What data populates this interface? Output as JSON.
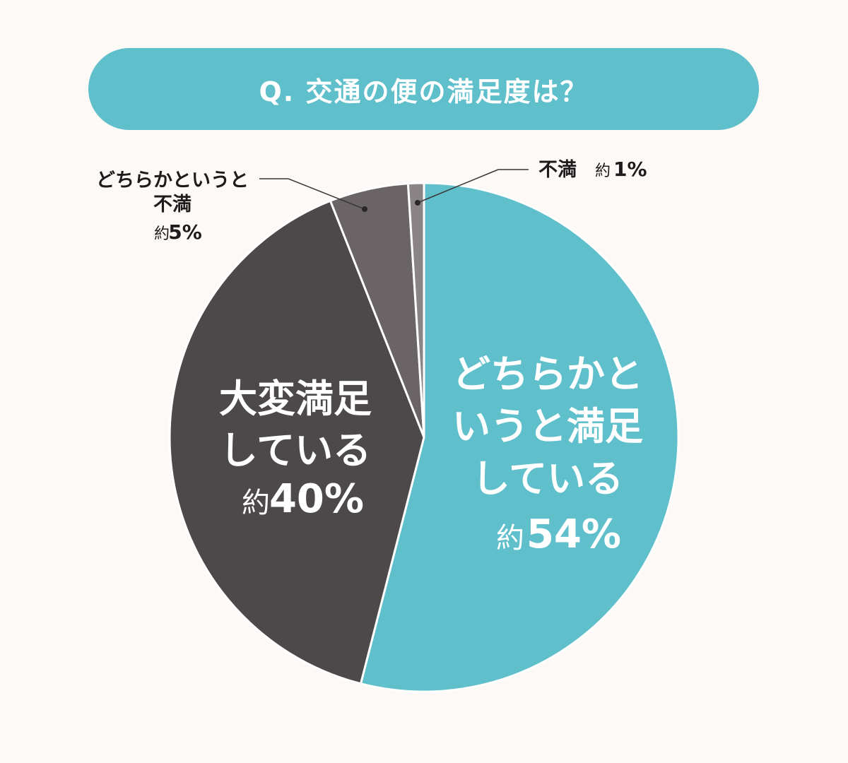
{
  "title": "Q. 交通の便の満足度は？",
  "chart_data": {
    "type": "pie",
    "title": "Q. 交通の便の満足度は？",
    "slices": [
      {
        "label_lines": [
          "どちらかと",
          "いうと満足",
          "している"
        ],
        "prefix": "約",
        "value": 54,
        "value_text": "54%",
        "color": "#5fbfca"
      },
      {
        "label_lines": [
          "大変満足",
          "している"
        ],
        "prefix": "約",
        "value": 40,
        "value_text": "40%",
        "color": "#4d4849"
      },
      {
        "label_lines": [
          "どちらかというと",
          "不満"
        ],
        "prefix": "約",
        "value": 5,
        "value_text": "5%",
        "color": "#6a6466"
      },
      {
        "label_lines": [
          "不満"
        ],
        "prefix": "約",
        "value": 1,
        "value_text": "1%",
        "color": "#8a8486"
      }
    ]
  }
}
